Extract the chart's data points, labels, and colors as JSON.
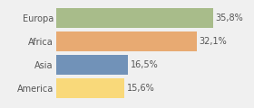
{
  "categories": [
    "America",
    "Asia",
    "Africa",
    "Europa"
  ],
  "values": [
    15.6,
    16.5,
    32.1,
    35.8
  ],
  "colors": [
    "#f9d97a",
    "#7192b8",
    "#e8aa72",
    "#a8bc8a"
  ],
  "labels": [
    "15,6%",
    "16,5%",
    "32,1%",
    "35,8%"
  ],
  "background_color": "#f0f0f0",
  "bar_label_fontsize": 7.0,
  "cat_fontsize": 7.0,
  "xlim": [
    0,
    44
  ],
  "bar_height": 0.85
}
